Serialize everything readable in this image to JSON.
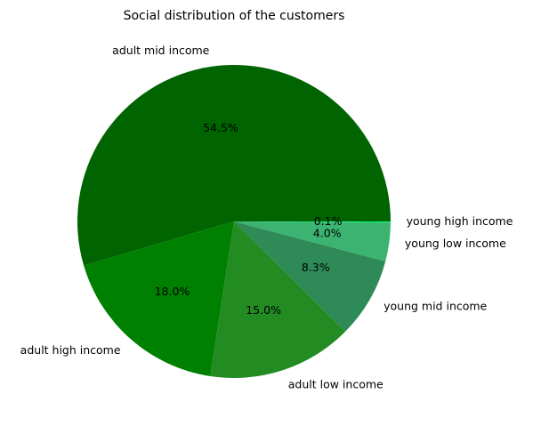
{
  "chart_data": {
    "type": "pie",
    "title": "Social distribution of the customers",
    "categories": [
      "adult mid income",
      "adult high income",
      "adult low income",
      "young mid income",
      "young low income",
      "young high income"
    ],
    "values": [
      54.5,
      18.0,
      15.0,
      8.3,
      4.0,
      0.1
    ],
    "percent_labels": [
      "54.5%",
      "18.0%",
      "15.0%",
      "8.3%",
      "4.0%",
      "0.1%"
    ],
    "colors": [
      "#006400",
      "#008000",
      "#228B22",
      "#2E8B57",
      "#3CB371",
      "#00FF7F"
    ],
    "start_angle_deg": 0,
    "direction": "counterclockwise"
  }
}
